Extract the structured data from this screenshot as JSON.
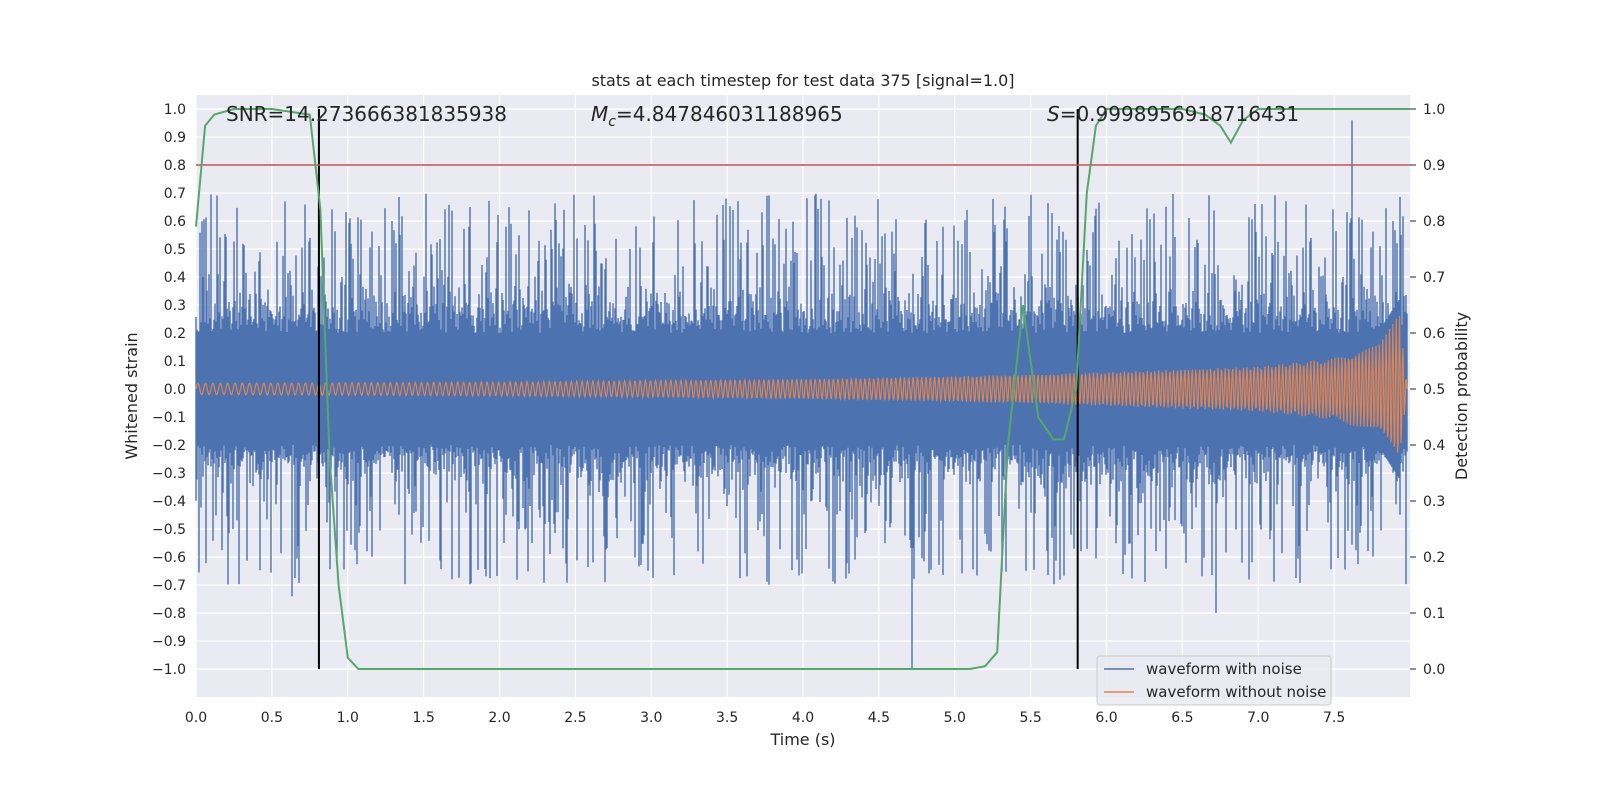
{
  "chart_data": {
    "type": "line",
    "title": "stats at each timestep for test data 375 [signal=1.0]",
    "xlabel": "Time (s)",
    "ylabel_left": "Whitened strain",
    "ylabel_right": "Detection probability",
    "xlim": [
      0.0,
      8.0
    ],
    "ylim_left": [
      -1.1,
      1.05
    ],
    "ylim_right": [
      -0.05,
      1.025
    ],
    "x_ticks": [
      "0.0",
      "0.5",
      "1.0",
      "1.5",
      "2.0",
      "2.5",
      "3.0",
      "3.5",
      "4.0",
      "4.5",
      "5.0",
      "5.5",
      "6.0",
      "6.5",
      "7.0",
      "7.5"
    ],
    "y_ticks_left": [
      "−1.0",
      "−0.9",
      "−0.8",
      "−0.7",
      "−0.6",
      "−0.5",
      "−0.4",
      "−0.3",
      "−0.2",
      "−0.1",
      "0.0",
      "0.1",
      "0.2",
      "0.3",
      "0.4",
      "0.5",
      "0.6",
      "0.7",
      "0.8",
      "0.9",
      "1.0"
    ],
    "y_ticks_right": [
      "0.0",
      "0.1",
      "0.2",
      "0.3",
      "0.4",
      "0.5",
      "0.6",
      "0.7",
      "0.8",
      "0.9",
      "1.0"
    ],
    "grid": true,
    "annotations": {
      "snr": "SNR=14.273666381835938",
      "mc_symbol": "M",
      "mc_sub": "c",
      "mc_value": "=4.847846031188965",
      "s_symbol": "S",
      "s_value": "=0.9998956918716431"
    },
    "legend": {
      "placement": "bottom-right",
      "entries": [
        "waveform with noise",
        "waveform without noise"
      ]
    },
    "colors": {
      "noise": "#4c72b0",
      "clean": "#dd8452",
      "probability": "#55a868",
      "threshold": "#c44e52",
      "marker": "#000000",
      "plot_bg": "#eaeaf2",
      "grid": "#ffffff"
    },
    "threshold_probability": 0.9,
    "vertical_markers_s": [
      0.81,
      5.81
    ],
    "noise_envelope": {
      "description": "whitened strain with noise, approx. symmetric ±0.35 typical, peaks to ±0.7",
      "t_end": 7.98,
      "max_value": 0.96,
      "min_value": -1.0
    },
    "clean_envelope": {
      "description": "chirp amplitude rising toward merger",
      "t": [
        0.0,
        2.0,
        4.0,
        5.0,
        6.0,
        7.0,
        7.5,
        7.8,
        7.93,
        7.98
      ],
      "amplitude": [
        0.02,
        0.025,
        0.035,
        0.045,
        0.06,
        0.08,
        0.11,
        0.16,
        0.27,
        0.01
      ]
    },
    "detection_probability": {
      "t": [
        0.0,
        0.06,
        0.12,
        0.25,
        0.5,
        0.75,
        0.82,
        0.88,
        0.94,
        1.0,
        1.07,
        5.1,
        5.2,
        5.28,
        5.35,
        5.45,
        5.55,
        5.65,
        5.72,
        5.8,
        5.87,
        5.93,
        6.0,
        6.5,
        6.65,
        6.75,
        6.82,
        6.9,
        7.0,
        8.0
      ],
      "p": [
        0.79,
        0.97,
        0.99,
        1.0,
        1.0,
        0.99,
        0.82,
        0.38,
        0.15,
        0.02,
        0.0,
        0.0,
        0.005,
        0.03,
        0.4,
        0.65,
        0.45,
        0.41,
        0.41,
        0.5,
        0.85,
        0.97,
        1.0,
        1.0,
        0.99,
        0.97,
        0.94,
        0.98,
        1.0,
        1.0
      ]
    }
  }
}
